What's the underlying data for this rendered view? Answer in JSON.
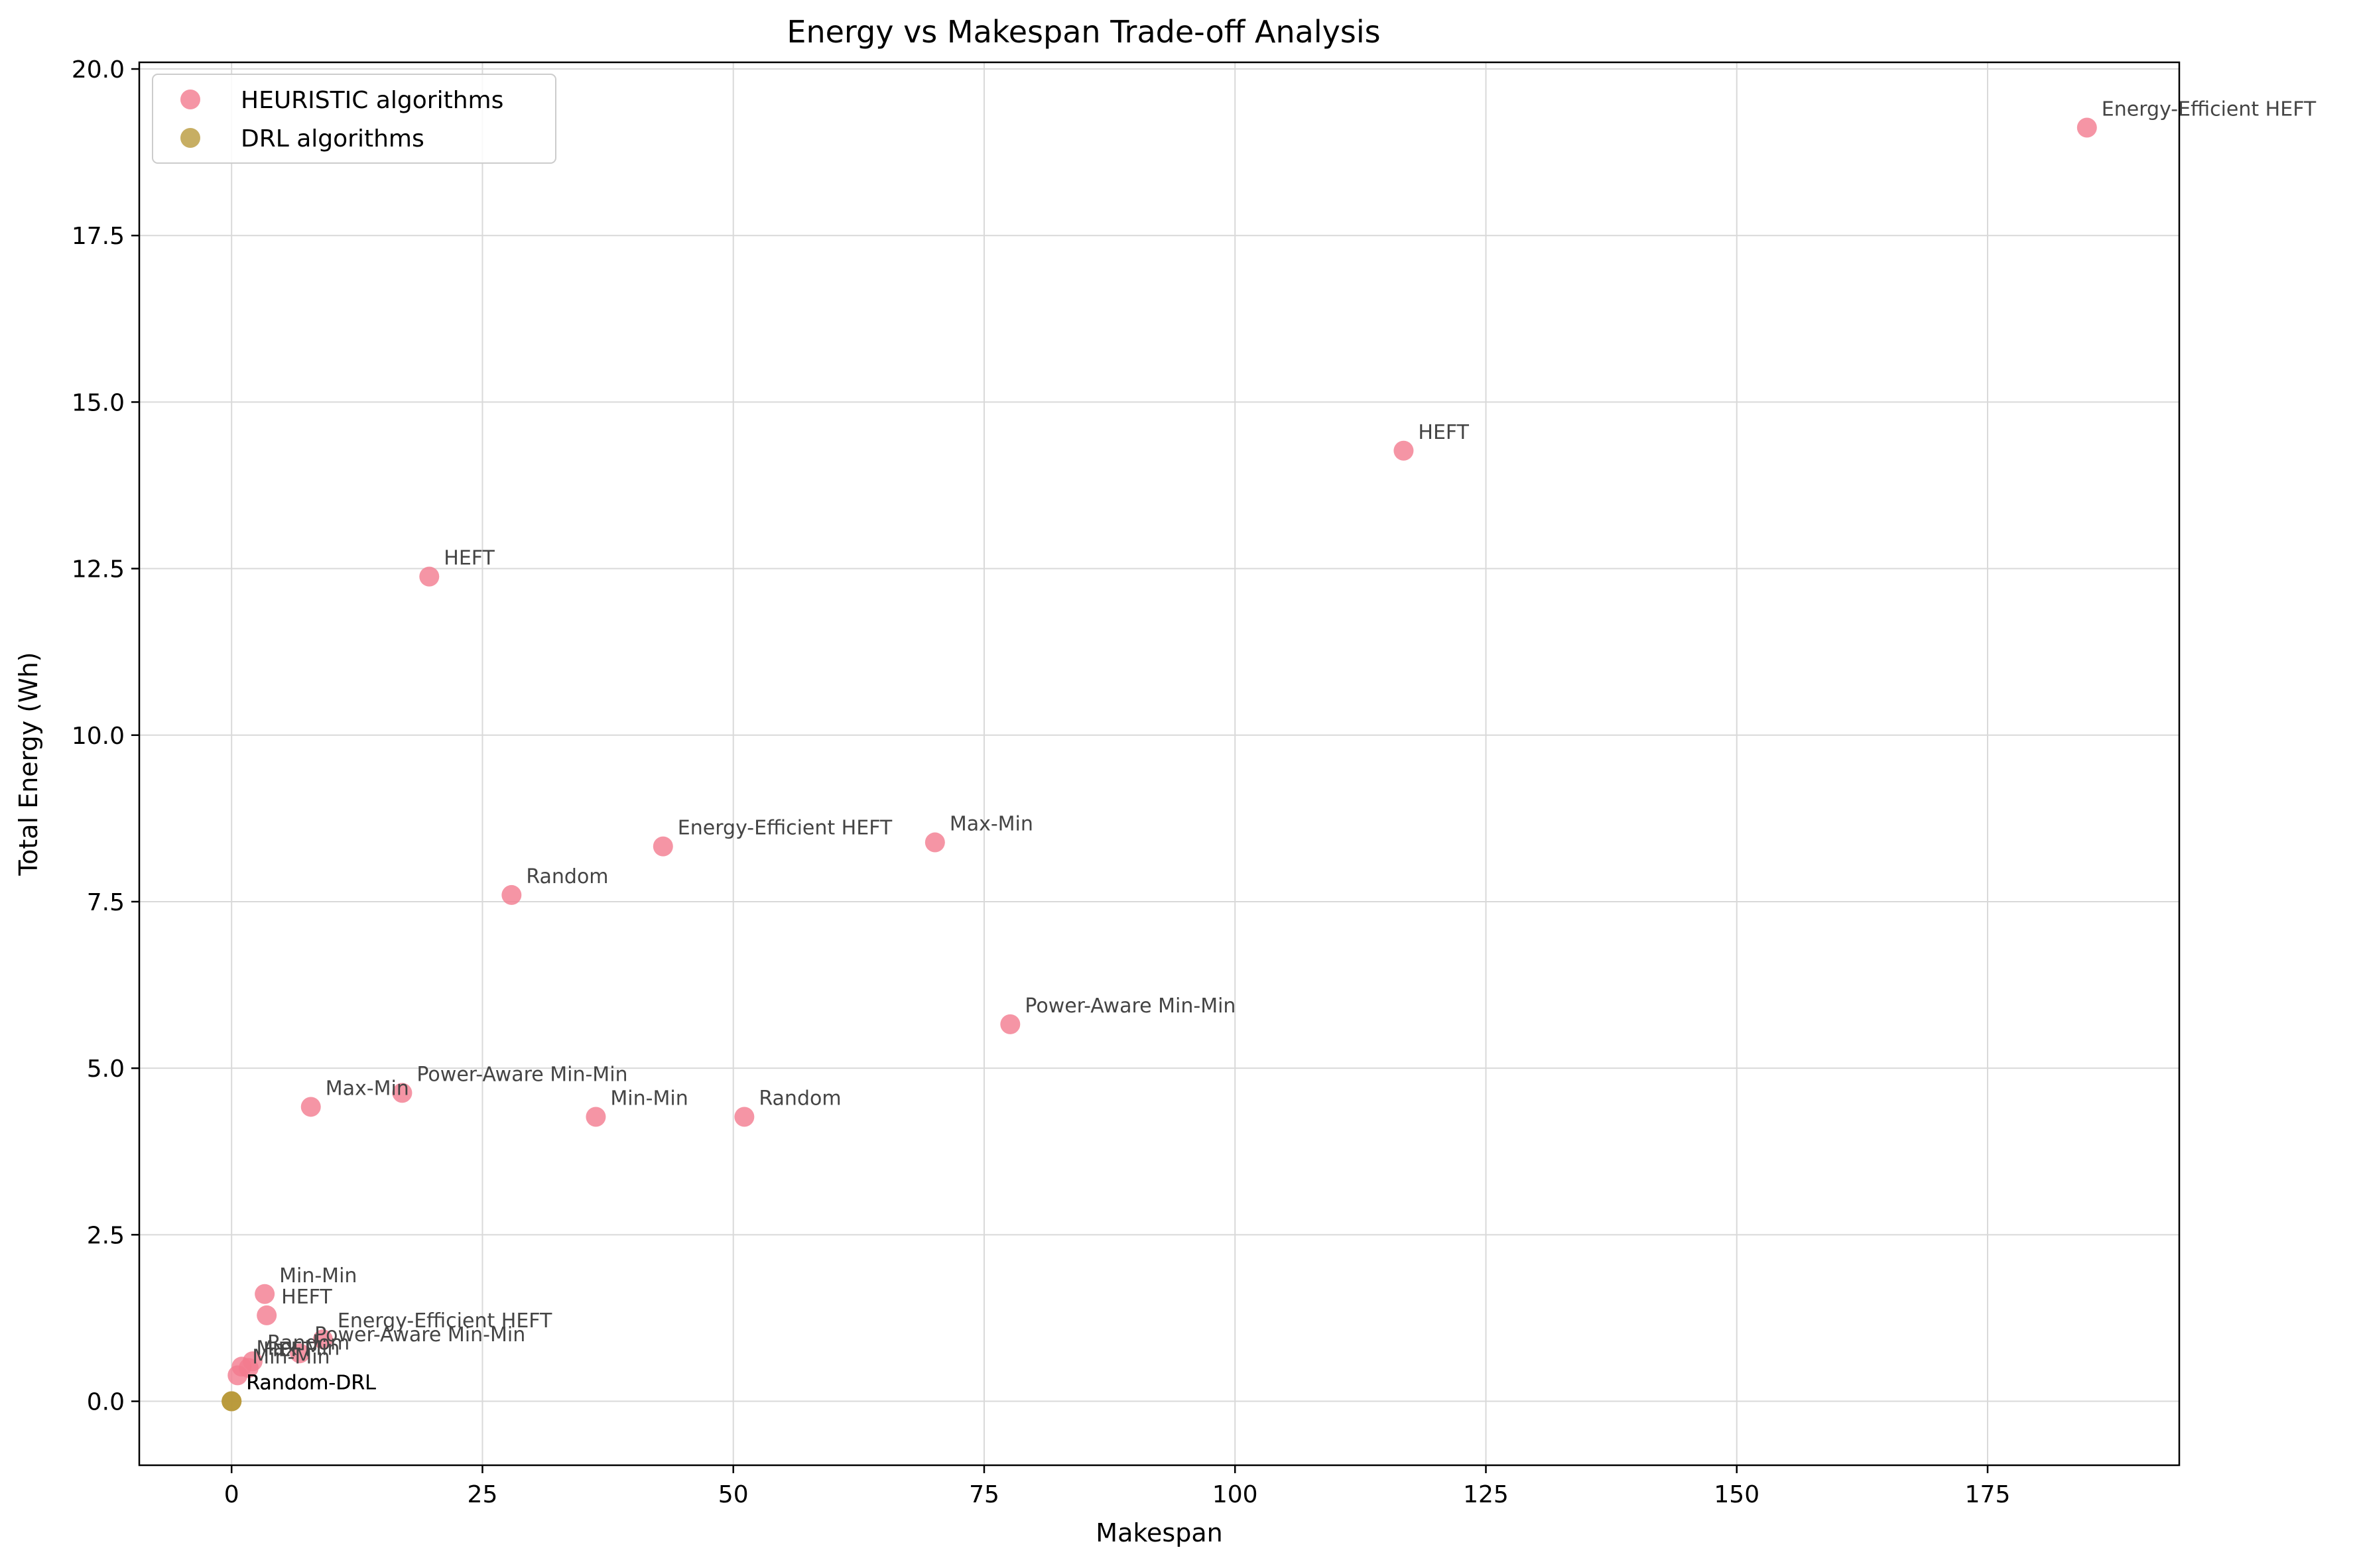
{
  "chart_data": {
    "type": "scatter",
    "title": "Energy vs Makespan Trade-off Analysis",
    "xlabel": "Makespan",
    "ylabel": "Total Energy (Wh)",
    "xlim": [
      -9.2,
      194.1
    ],
    "ylim": [
      -0.96,
      20.1
    ],
    "xticks": [
      0,
      25,
      50,
      75,
      100,
      125,
      150,
      175
    ],
    "yticks": [
      0.0,
      2.5,
      5.0,
      7.5,
      10.0,
      12.5,
      15.0,
      17.5,
      20.0
    ],
    "xtick_labels": [
      "0",
      "25",
      "50",
      "75",
      "100",
      "125",
      "150",
      "175"
    ],
    "ytick_labels": [
      "0.0",
      "2.5",
      "5.0",
      "7.5",
      "10.0",
      "12.5",
      "15.0",
      "17.5",
      "20.0"
    ],
    "grid": true,
    "legend_position": "top-left",
    "series": [
      {
        "name": "HEURISTIC algorithms",
        "color": "#f37b8f",
        "points": [
          {
            "x": 184.9,
            "y": 19.12,
            "label": "Energy-Efficient HEFT"
          },
          {
            "x": 116.8,
            "y": 14.27,
            "label": "HEFT"
          },
          {
            "x": 19.7,
            "y": 12.38,
            "label": "HEFT"
          },
          {
            "x": 43.0,
            "y": 8.33,
            "label": "Energy-Efficient HEFT"
          },
          {
            "x": 70.1,
            "y": 8.39,
            "label": "Max-Min"
          },
          {
            "x": 27.9,
            "y": 7.6,
            "label": "Random"
          },
          {
            "x": 77.6,
            "y": 5.66,
            "label": "Power-Aware Min-Min"
          },
          {
            "x": 7.9,
            "y": 4.42,
            "label": "Max-Min"
          },
          {
            "x": 17.0,
            "y": 4.63,
            "label": "Power-Aware Min-Min"
          },
          {
            "x": 36.3,
            "y": 4.27,
            "label": "Min-Min"
          },
          {
            "x": 51.1,
            "y": 4.27,
            "label": "Random"
          },
          {
            "x": 3.3,
            "y": 1.61,
            "label": "Min-Min"
          },
          {
            "x": 3.5,
            "y": 1.29,
            "label": "HEFT"
          },
          {
            "x": 9.1,
            "y": 0.93,
            "label": "Energy-Efficient HEFT"
          },
          {
            "x": 6.8,
            "y": 0.72,
            "label": "Power-Aware Min-Min"
          },
          {
            "x": 2.1,
            "y": 0.6,
            "label": "Random"
          },
          {
            "x": 1.0,
            "y": 0.52,
            "label": "Max-Min"
          },
          {
            "x": 1.7,
            "y": 0.5,
            "label": "HEFT"
          },
          {
            "x": 0.6,
            "y": 0.39,
            "label": "Min-Min"
          }
        ]
      },
      {
        "name": "DRL algorithms",
        "color": "#b99a3c",
        "points": [
          {
            "x": 0.0,
            "y": 0.0,
            "label": "Random-DRL"
          },
          {
            "x": 0.0,
            "y": 0.0,
            "label": "Random-DRL"
          },
          {
            "x": 0.0,
            "y": 0.0,
            "label": "Random-DRL"
          }
        ]
      }
    ]
  }
}
